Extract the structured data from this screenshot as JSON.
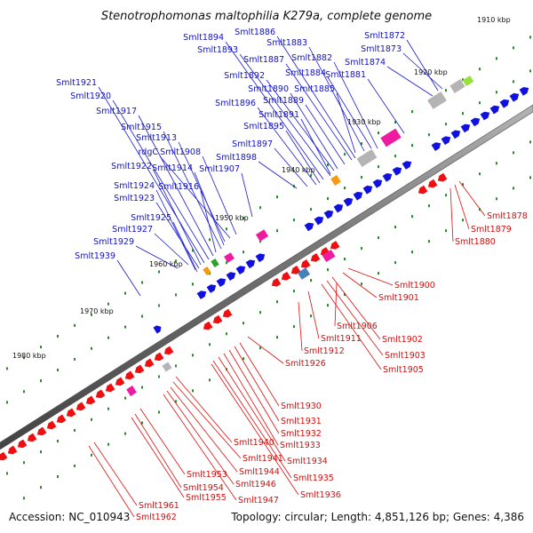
{
  "title": "Stenotrophomonas maltophilia K279a, complete genome",
  "footer": {
    "accession": "Accession: NC_010943",
    "summary": "Topology: circular; Length: 4,851,126 bp; Genes: 4,386"
  },
  "colors": {
    "forward": "#1010e0",
    "reverse": "#ee1010",
    "magenta": "#ee1ba0",
    "gray": "#b4b4b4",
    "orange": "#f59a10",
    "green": "#29a329",
    "lime": "#9adf3c",
    "steel": "#4a80b8"
  },
  "kbp_ticks": [
    "1910 kbp",
    "1920 kbp",
    "1930 kbp",
    "1940 kbp",
    "1950 kbp",
    "1960 kbp",
    "1970 kbp",
    "1980 kbp"
  ],
  "forward_labels": [
    "Smlt1872",
    "Smlt1873",
    "Smlt1874",
    "Smlt1881",
    "Smlt1882",
    "Smlt1883",
    "Smlt1884",
    "Smlt1885",
    "Smlt1886",
    "Smlt1887",
    "Smlt1889",
    "Smlt1890",
    "Smlt1891",
    "Smlt1892",
    "Smlt1893",
    "Smlt1894",
    "Smlt1895",
    "Smlt1896",
    "Smlt1897",
    "Smlt1898",
    "Smlt1907",
    "Smlt1908",
    "rdgC",
    "Smlt1913",
    "Smlt1914",
    "Smlt1915",
    "Smlt1916",
    "Smlt1917",
    "Smlt1920",
    "Smlt1921",
    "Smlt1922",
    "Smlt1923",
    "Smlt1924",
    "Smlt1925",
    "Smlt1927",
    "Smlt1929",
    "Smlt1939"
  ],
  "reverse_labels": [
    "Smlt1878",
    "Smlt1879",
    "Smlt1880",
    "Smlt1900",
    "Smlt1901",
    "Smlt1902",
    "Smlt1903",
    "Smlt1905",
    "Smlt1906",
    "Smlt1911",
    "Smlt1912",
    "Smlt1926",
    "Smlt1930",
    "Smlt1931",
    "Smlt1932",
    "Smlt1933",
    "Smlt1934",
    "Smlt1935",
    "Smlt1936",
    "Smlt1940",
    "Smlt1941",
    "Smlt1944",
    "Smlt1946",
    "Smlt1947",
    "Smlt1953",
    "Smlt1954",
    "Smlt1955",
    "Smlt1961",
    "Smlt1962"
  ]
}
